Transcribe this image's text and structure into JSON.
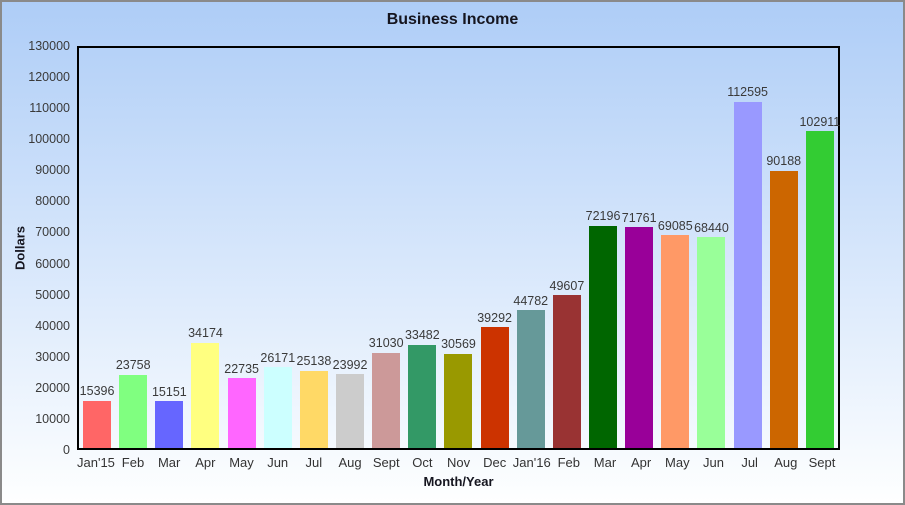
{
  "window": {
    "border_color": "#8a8a8a",
    "background_gradient_top": "#AECDF7",
    "background_gradient_bottom": "#FEFFFF"
  },
  "chart_data": {
    "type": "bar",
    "title": "Business Income",
    "xlabel": "Month/Year",
    "ylabel": "Dollars",
    "categories": [
      "Jan'15",
      "Feb",
      "Mar",
      "Apr",
      "May",
      "Jun",
      "Jul",
      "Aug",
      "Sept",
      "Oct",
      "Nov",
      "Dec",
      "Jan'16",
      "Feb",
      "Mar",
      "Apr",
      "May",
      "Jun",
      "Jul",
      "Aug",
      "Sept"
    ],
    "values": [
      15396,
      23758,
      15151,
      34174,
      22735,
      26171,
      25138,
      23992,
      31030,
      33482,
      30569,
      39292,
      44782,
      49607,
      72196,
      71761,
      69085,
      68440,
      112595,
      90188,
      102911
    ],
    "bar_colors": [
      "#FF6666",
      "#80FF80",
      "#6666FF",
      "#FFFF80",
      "#FF66FF",
      "#CCFFFF",
      "#FFD966",
      "#CCCCCC",
      "#CC9999",
      "#339966",
      "#999900",
      "#CC3300",
      "#669999",
      "#993333",
      "#006600",
      "#990099",
      "#FF9966",
      "#99FF99",
      "#9999FF",
      "#CC6600",
      "#33CC33"
    ],
    "ylim": [
      0,
      130000
    ],
    "yticks": [
      0,
      10000,
      20000,
      30000,
      40000,
      50000,
      60000,
      70000,
      80000,
      90000,
      100000,
      110000,
      120000,
      130000
    ],
    "value_labels_shown": true,
    "grid": false,
    "legend_position": "none",
    "axis_frame_color": "#000000"
  }
}
